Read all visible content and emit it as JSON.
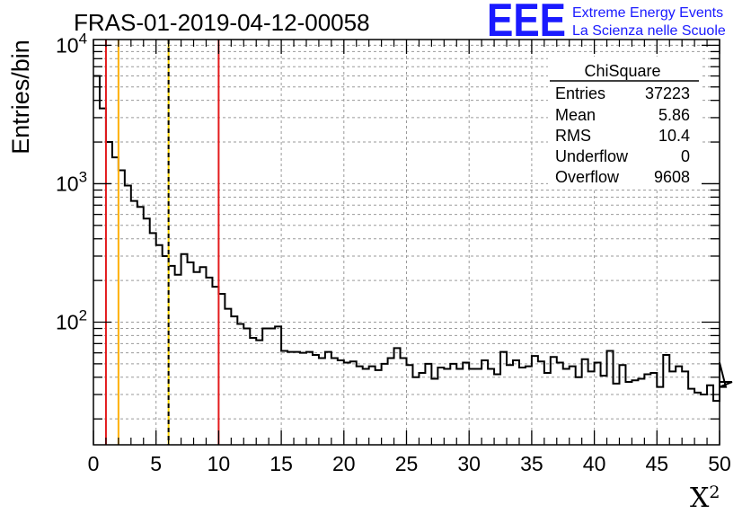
{
  "logo": {
    "mark": "EEE",
    "line1": "Extreme Energy Events",
    "line2": "La Scienza nelle Scuole"
  },
  "colors": {
    "histogram": "#000000",
    "cut_red": "#e31a1c",
    "cut_orange": "#ffb000",
    "cut_yellow": "#ffd700",
    "logo": "#1a1aff",
    "grid": "#9a9a9a"
  },
  "chart_data": {
    "type": "histogram",
    "title": "FRAS-01-2019-04-12-00058",
    "xlabel": "X",
    "xlabel_superscript": "2",
    "ylabel": "Entries/bin",
    "xlim": [
      0,
      50
    ],
    "ylim": [
      13,
      11000
    ],
    "yscale": "log",
    "grid": true,
    "bin_width": 0.5,
    "x_ticks": [
      "0",
      "5",
      "10",
      "15",
      "20",
      "25",
      "30",
      "35",
      "40",
      "45",
      "50"
    ],
    "y_ticks": [
      {
        "value": 100,
        "base": "10",
        "exp": "2"
      },
      {
        "value": 1000,
        "base": "10",
        "exp": "3"
      },
      {
        "value": 10000,
        "base": "10",
        "exp": "4"
      }
    ],
    "values": [
      6000,
      3500,
      2000,
      1550,
      1250,
      970,
      750,
      680,
      560,
      440,
      360,
      300,
      255,
      220,
      310,
      270,
      230,
      250,
      210,
      180,
      160,
      125,
      110,
      97,
      90,
      77,
      74,
      90,
      90,
      93,
      62,
      61,
      61,
      60,
      61,
      58,
      55,
      61,
      55,
      53,
      51,
      52,
      48,
      46,
      48,
      45,
      50,
      55,
      65,
      55,
      49,
      40,
      43,
      50,
      39,
      47,
      46,
      50,
      46,
      51,
      46,
      46,
      53,
      46,
      42,
      61,
      49,
      53,
      47,
      48,
      57,
      52,
      43,
      56,
      51,
      46,
      48,
      40,
      54,
      44,
      51,
      41,
      62,
      36,
      49,
      37,
      38,
      39,
      42,
      43,
      34,
      58,
      44,
      48,
      44,
      33,
      31,
      30,
      35,
      27,
      51,
      34,
      37
    ],
    "vertical_lines": [
      {
        "x": 1,
        "color": "#e31a1c",
        "style": "solid"
      },
      {
        "x": 2,
        "color": "#ffb000",
        "style": "solid"
      },
      {
        "x": 6,
        "color": "#ffd700",
        "style": "solid"
      },
      {
        "x": 6,
        "color": "#000000",
        "style": "dashed"
      },
      {
        "x": 10,
        "color": "#e31a1c",
        "style": "solid"
      }
    ],
    "stats": {
      "name": "ChiSquare",
      "rows": [
        {
          "label": "Entries",
          "value": "37223"
        },
        {
          "label": "Mean",
          "value": "5.86"
        },
        {
          "label": "RMS",
          "value": "10.4"
        },
        {
          "label": "Underflow",
          "value": "0"
        },
        {
          "label": "Overflow",
          "value": "9608"
        }
      ]
    }
  }
}
